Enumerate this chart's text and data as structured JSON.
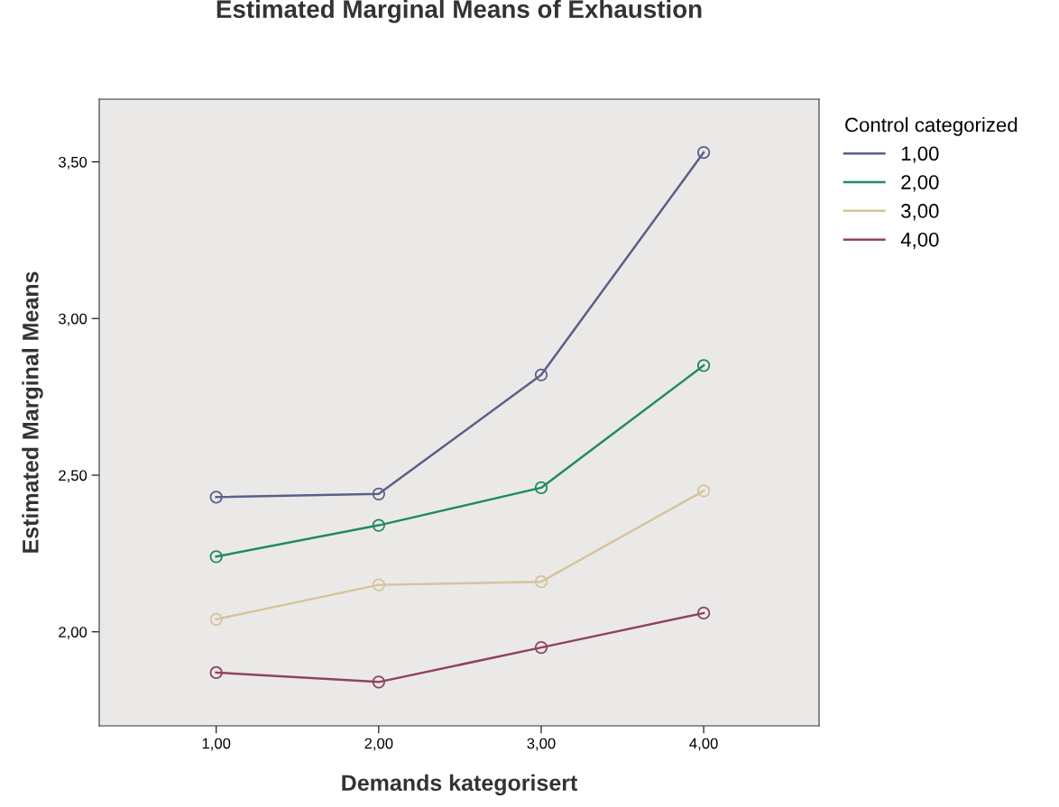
{
  "chart_data": {
    "type": "line",
    "title": "Estimated Marginal Means of Exhaustion",
    "xlabel": "Demands kategorisert",
    "ylabel": "Estimated Marginal Means",
    "legend_title": "Control categorized",
    "categories": [
      "1,00",
      "2,00",
      "3,00",
      "4,00"
    ],
    "series": [
      {
        "name": "1,00",
        "color": "#58608a",
        "values": [
          2.43,
          2.44,
          2.82,
          3.53
        ]
      },
      {
        "name": "2,00",
        "color": "#1f8a64",
        "values": [
          2.24,
          2.34,
          2.46,
          2.85
        ]
      },
      {
        "name": "3,00",
        "color": "#d5c49b",
        "values": [
          2.04,
          2.15,
          2.16,
          2.45
        ]
      },
      {
        "name": "4,00",
        "color": "#8e4262",
        "values": [
          1.87,
          1.84,
          1.95,
          2.06
        ]
      }
    ],
    "ylim": [
      1.7,
      3.7
    ],
    "yticks": [
      {
        "value": 2.0,
        "label": "2,00"
      },
      {
        "value": 2.5,
        "label": "2,50"
      },
      {
        "value": 3.0,
        "label": "3,00"
      },
      {
        "value": 3.5,
        "label": "3,50"
      }
    ],
    "marker": "circle",
    "line_style": "solid",
    "grid": false,
    "legend": "top right"
  }
}
